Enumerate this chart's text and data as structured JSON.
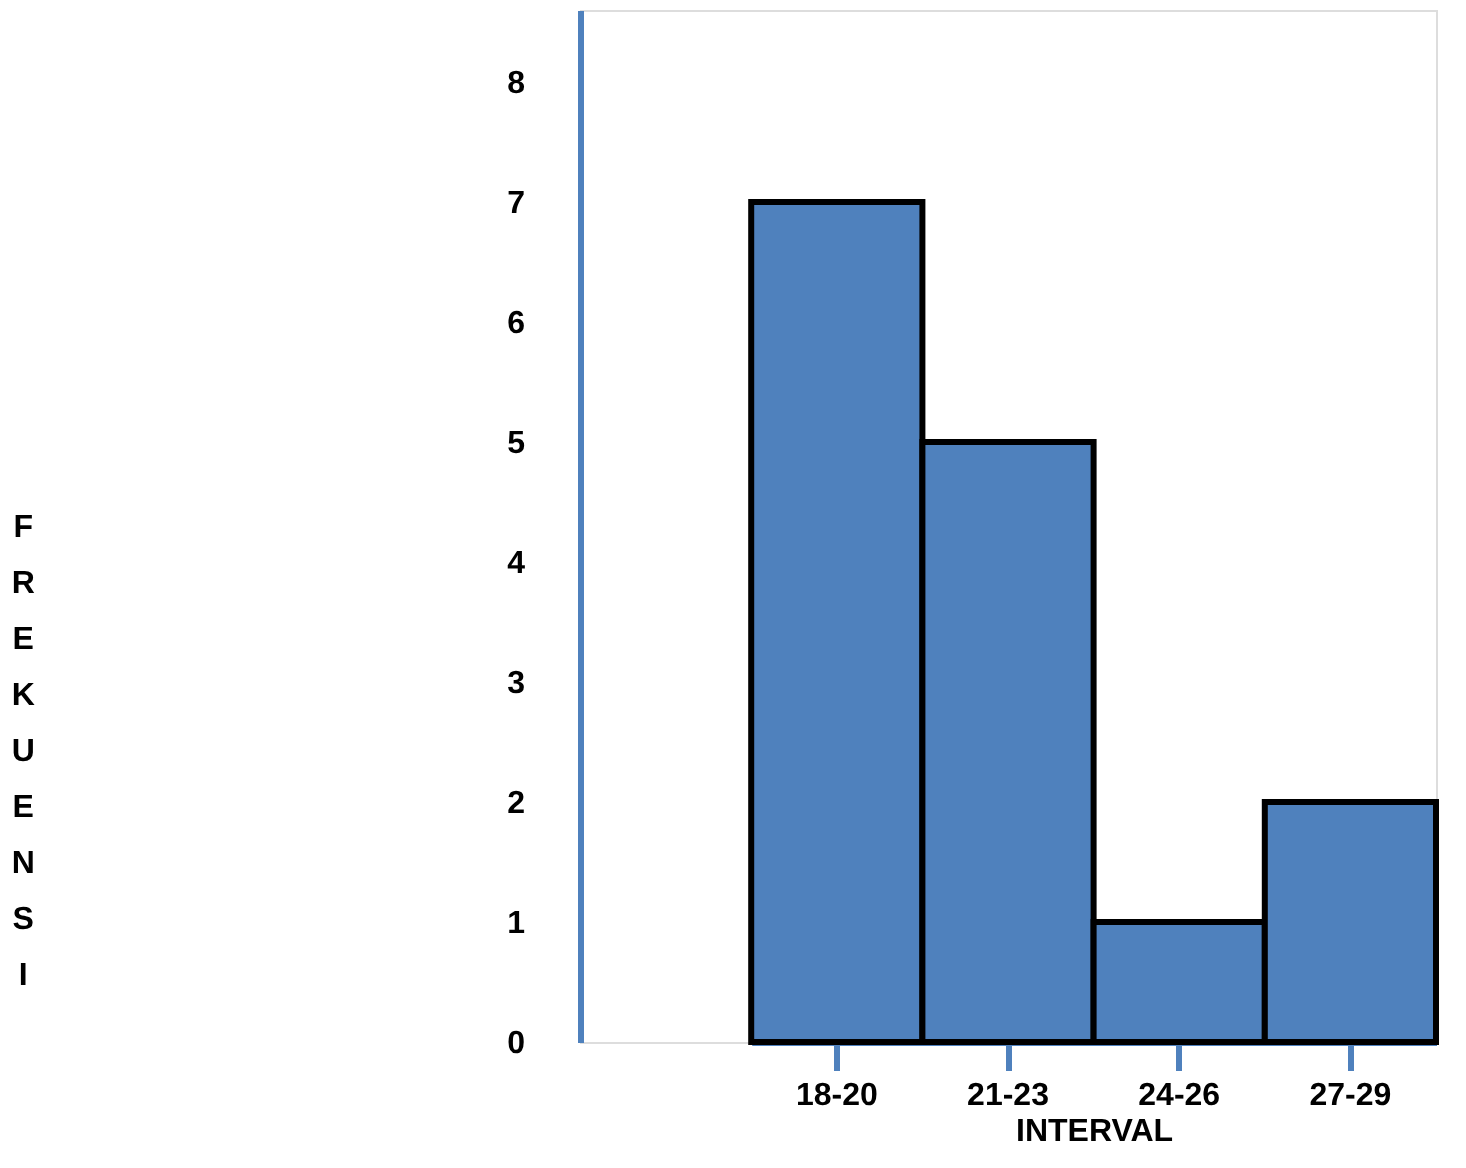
{
  "chart_data": {
    "type": "bar",
    "xlabel": "INTERVAL",
    "ylabel": "FREKUENSI",
    "categories": [
      "18-20",
      "21-23",
      "24-26",
      "27-29"
    ],
    "values": [
      7,
      5,
      1,
      2
    ],
    "color": "#4f81bd",
    "ylim": [
      0,
      8.6
    ],
    "yticks": [
      0,
      1,
      2,
      3,
      4,
      5,
      6,
      7,
      8
    ],
    "grid": false
  }
}
